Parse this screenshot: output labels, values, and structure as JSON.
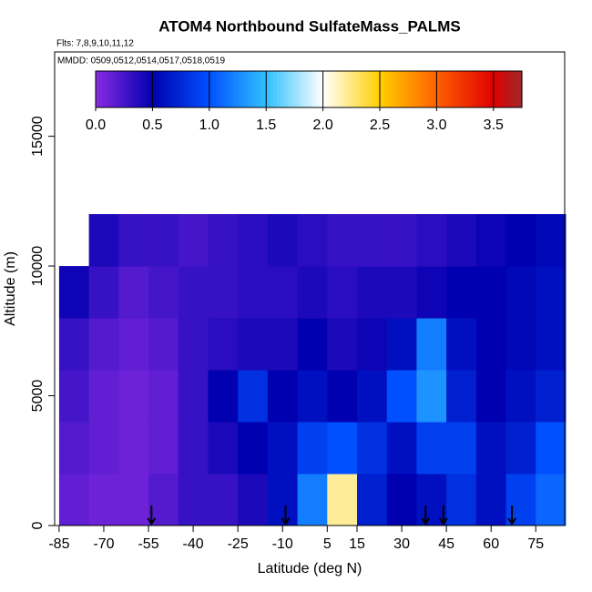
{
  "chart_data": {
    "type": "heatmap",
    "title": "ATOM4 Northbound SulfateMass_PALMS",
    "annotations": [
      "Flts: 7,8,9,10,11,12",
      "MMDD: 0509,0512,0514,0517,0518,0519"
    ],
    "x_label": "Latitude (deg N)",
    "y_label": "Altitude (m)",
    "xlim": [
      -86.5,
      84.7
    ],
    "ylim": [
      0,
      18250
    ],
    "xticks": [
      -85,
      -70,
      -55,
      -40,
      -25,
      -10,
      5,
      15,
      30,
      45,
      60,
      75
    ],
    "yticks": [
      0,
      5000,
      10000,
      15000
    ],
    "x_bins": [
      -85,
      -75,
      -65,
      -55,
      -45,
      -35,
      -25,
      -15,
      -5,
      5,
      15,
      25,
      35,
      45,
      55,
      65,
      75,
      85
    ],
    "y_bins": [
      0,
      2000,
      4000,
      6000,
      8000,
      10000,
      12000
    ],
    "values": [
      [
        0.15,
        0.1,
        0.1,
        0.2,
        0.3,
        0.3,
        0.4,
        0.6,
        1.2,
        2.2,
        0.7,
        0.5,
        0.6,
        0.8,
        0.6,
        0.9,
        1.1
      ],
      [
        0.2,
        0.15,
        0.1,
        0.15,
        0.3,
        0.4,
        0.5,
        0.6,
        0.9,
        1.0,
        0.8,
        0.6,
        0.9,
        0.9,
        0.6,
        0.7,
        1.0
      ],
      [
        0.25,
        0.15,
        0.1,
        0.15,
        0.3,
        0.5,
        0.8,
        0.5,
        0.6,
        0.5,
        0.6,
        1.0,
        1.3,
        0.7,
        0.5,
        0.6,
        0.7
      ],
      [
        0.3,
        0.2,
        0.15,
        0.2,
        0.3,
        0.35,
        0.4,
        0.4,
        0.5,
        0.4,
        0.45,
        0.6,
        1.2,
        0.6,
        0.5,
        0.55,
        0.6
      ],
      [
        0.45,
        0.3,
        0.2,
        0.25,
        0.3,
        0.3,
        0.35,
        0.35,
        0.4,
        0.35,
        0.4,
        0.4,
        0.45,
        0.5,
        0.5,
        0.55,
        0.6
      ],
      [
        null,
        0.4,
        0.3,
        0.3,
        0.25,
        0.3,
        0.35,
        0.4,
        0.35,
        0.3,
        0.3,
        0.3,
        0.35,
        0.4,
        0.45,
        0.5,
        0.55
      ]
    ],
    "arrows": [
      -54,
      -9,
      38,
      44,
      67
    ],
    "colorscale": [
      [
        0,
        "#8a2be2"
      ],
      [
        0.5,
        "#0000b0"
      ],
      [
        1.0,
        "#0050ff"
      ],
      [
        1.5,
        "#30c0ff"
      ],
      [
        2.0,
        "#ffffff"
      ],
      [
        2.5,
        "#ffd000"
      ],
      [
        3.0,
        "#ff6000"
      ],
      [
        3.5,
        "#e00000"
      ],
      [
        3.75,
        "#a02828"
      ]
    ],
    "cblim": [
      0,
      3.75
    ],
    "cbticks": [
      {
        "value": 0,
        "label": "0.0"
      },
      {
        "value": 0.5,
        "label": "0.5"
      },
      {
        "value": 1,
        "label": "1.0"
      },
      {
        "value": 1.5,
        "label": "1.5"
      },
      {
        "value": 2,
        "label": "2.0"
      },
      {
        "value": 2.5,
        "label": "2.5"
      },
      {
        "value": 3,
        "label": "3.0"
      },
      {
        "value": 3.5,
        "label": "3.5"
      }
    ]
  }
}
